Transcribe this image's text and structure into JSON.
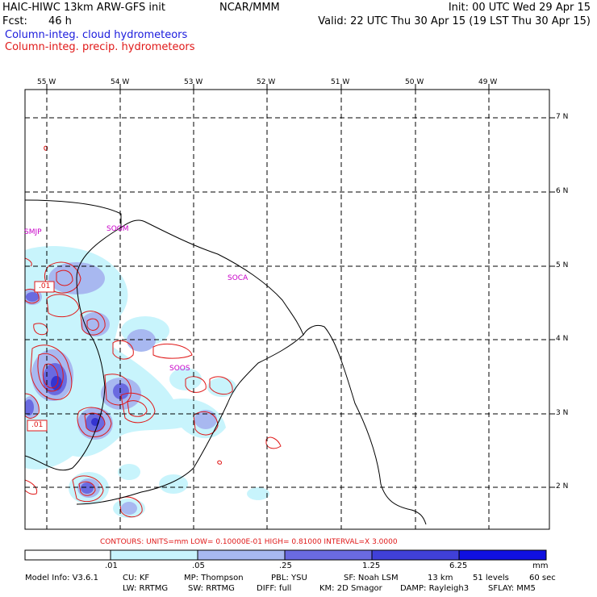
{
  "header": {
    "title": "HAIC-HIWC 13km ARW-GFS init",
    "org": "NCAR/MMM",
    "init": "Init: 00 UTC Wed 29 Apr 15",
    "fcst_label": "Fcst:",
    "fcst_value": "46 h",
    "valid": "Valid: 22 UTC Thu 30 Apr 15 (19 LST Thu 30 Apr 15)",
    "legend_cloud": "Column-integ. cloud hydrometeors",
    "legend_precip": "Column-integ. precip. hydrometeors"
  },
  "map": {
    "lon_labels": [
      "55 W",
      "54 W",
      "53 W",
      "52 W",
      "51 W",
      "50 W",
      "49 W"
    ],
    "lat_labels": [
      "7 N",
      "6 N",
      "5 N",
      "4 N",
      "3 N",
      "2 N"
    ],
    "stations": [
      "SMJP",
      "SOGM",
      "SOCA",
      "SOOS"
    ],
    "contour_labels": [
      ".01",
      ".01"
    ],
    "colors": {
      "cloud_light": "#c8f4fc",
      "cloud_mid": "#a8b8f0",
      "cloud_dark": "#6a6ae0",
      "cloud_core": "#3434d0",
      "precip_contour": "#e01818",
      "station": "#c800c8"
    }
  },
  "contours_info": "CONTOURS:  UNITS=mm  LOW= 0.10000E-01  HIGH= 0.81000      INTERVAL=X  3.0000",
  "colorbar": {
    "labels": [
      ".01",
      ".05",
      ".25",
      "1.25",
      "6.25"
    ],
    "units": "mm",
    "colors": [
      "#ffffff",
      "#c8f4fc",
      "#a8b8f0",
      "#8c8ce8",
      "#5a5ae0",
      "#2e2ed8",
      "#1010e0"
    ]
  },
  "footer": {
    "line1": [
      "Model Info: V3.6.1",
      "CU: KF",
      "MP: Thompson",
      "PBL: YSU",
      "SF: Noah LSM",
      "13 km",
      "51 levels",
      "60 sec"
    ],
    "line2": [
      "LW: RRTMG",
      "SW: RRTMG",
      "DIFF: full",
      "KM: 2D Smagor",
      "DAMP: Rayleigh3",
      "SFLAY: MM5"
    ]
  }
}
